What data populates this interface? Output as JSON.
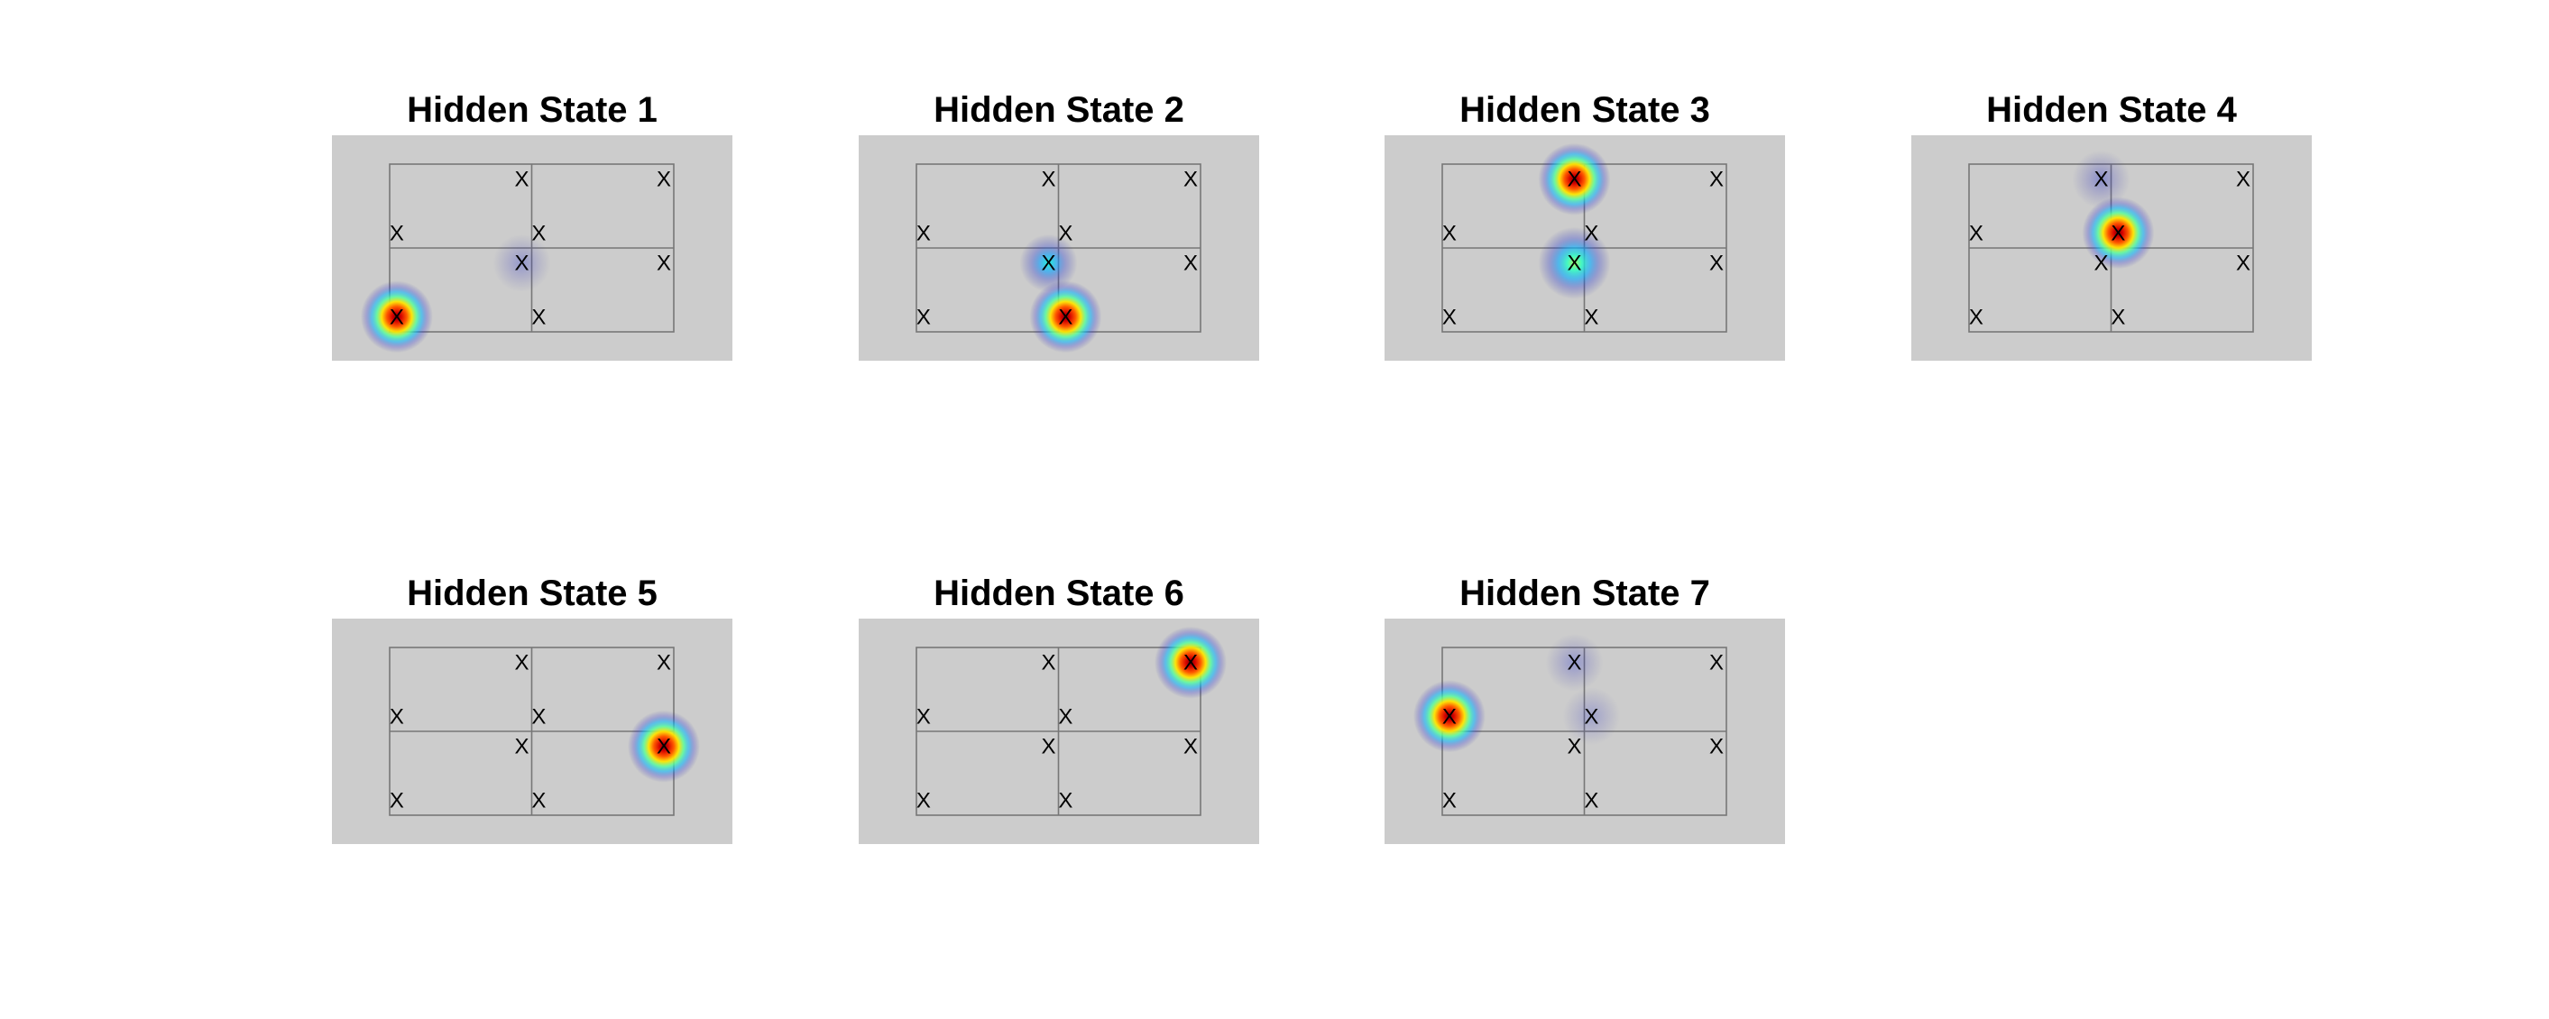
{
  "colors": {
    "axes_background": "#cccccc",
    "grid_line": "#777777",
    "marker": "#000000",
    "colormap": "jet"
  },
  "chart_data": [
    {
      "type": "heatmap",
      "title": "Hidden State 1",
      "xlim": [
        0,
        2
      ],
      "ylim": [
        0,
        2
      ],
      "axis_visible": false,
      "markers": {
        "label": "X",
        "points": [
          [
            0.93,
            1.82
          ],
          [
            1.93,
            1.82
          ],
          [
            0.05,
            1.18
          ],
          [
            1.05,
            1.18
          ],
          [
            0.93,
            0.82
          ],
          [
            1.93,
            0.82
          ],
          [
            0.05,
            0.18
          ],
          [
            1.05,
            0.18
          ]
        ]
      },
      "blobs": [
        {
          "x": 0.05,
          "y": 0.18,
          "intensity": 1.0
        },
        {
          "x": 0.93,
          "y": 0.82,
          "intensity": 0.12
        }
      ]
    },
    {
      "type": "heatmap",
      "title": "Hidden State 2",
      "xlim": [
        0,
        2
      ],
      "ylim": [
        0,
        2
      ],
      "axis_visible": false,
      "markers": {
        "label": "X",
        "points": [
          [
            0.93,
            1.82
          ],
          [
            1.93,
            1.82
          ],
          [
            0.05,
            1.18
          ],
          [
            1.05,
            1.18
          ],
          [
            0.93,
            0.82
          ],
          [
            1.93,
            0.82
          ],
          [
            0.05,
            0.18
          ],
          [
            1.05,
            0.18
          ]
        ]
      },
      "blobs": [
        {
          "x": 1.05,
          "y": 0.18,
          "intensity": 1.0
        },
        {
          "x": 0.93,
          "y": 0.82,
          "intensity": 0.4
        }
      ]
    },
    {
      "type": "heatmap",
      "title": "Hidden State 3",
      "xlim": [
        0,
        2
      ],
      "ylim": [
        0,
        2
      ],
      "axis_visible": false,
      "markers": {
        "label": "X",
        "points": [
          [
            0.93,
            1.82
          ],
          [
            1.93,
            1.82
          ],
          [
            0.05,
            1.18
          ],
          [
            1.05,
            1.18
          ],
          [
            0.93,
            0.82
          ],
          [
            1.93,
            0.82
          ],
          [
            0.05,
            0.18
          ],
          [
            1.05,
            0.18
          ]
        ]
      },
      "blobs": [
        {
          "x": 0.93,
          "y": 1.82,
          "intensity": 1.0
        },
        {
          "x": 0.93,
          "y": 0.82,
          "intensity": 0.55
        }
      ]
    },
    {
      "type": "heatmap",
      "title": "Hidden State 4",
      "xlim": [
        0,
        2
      ],
      "ylim": [
        0,
        2
      ],
      "axis_visible": false,
      "markers": {
        "label": "X",
        "points": [
          [
            0.93,
            1.82
          ],
          [
            1.93,
            1.82
          ],
          [
            0.05,
            1.18
          ],
          [
            1.05,
            1.18
          ],
          [
            0.93,
            0.82
          ],
          [
            1.93,
            0.82
          ],
          [
            0.05,
            0.18
          ],
          [
            1.05,
            0.18
          ]
        ]
      },
      "blobs": [
        {
          "x": 1.05,
          "y": 1.18,
          "intensity": 1.0
        },
        {
          "x": 0.93,
          "y": 1.82,
          "intensity": 0.18
        }
      ]
    },
    {
      "type": "heatmap",
      "title": "Hidden State 5",
      "xlim": [
        0,
        2
      ],
      "ylim": [
        0,
        2
      ],
      "axis_visible": false,
      "markers": {
        "label": "X",
        "points": [
          [
            0.93,
            1.82
          ],
          [
            1.93,
            1.82
          ],
          [
            0.05,
            1.18
          ],
          [
            1.05,
            1.18
          ],
          [
            0.93,
            0.82
          ],
          [
            1.93,
            0.82
          ],
          [
            0.05,
            0.18
          ],
          [
            1.05,
            0.18
          ]
        ]
      },
      "blobs": [
        {
          "x": 1.93,
          "y": 0.82,
          "intensity": 1.0
        }
      ]
    },
    {
      "type": "heatmap",
      "title": "Hidden State 6",
      "xlim": [
        0,
        2
      ],
      "ylim": [
        0,
        2
      ],
      "axis_visible": false,
      "markers": {
        "label": "X",
        "points": [
          [
            0.93,
            1.82
          ],
          [
            1.93,
            1.82
          ],
          [
            0.05,
            1.18
          ],
          [
            1.05,
            1.18
          ],
          [
            0.93,
            0.82
          ],
          [
            1.93,
            0.82
          ],
          [
            0.05,
            0.18
          ],
          [
            1.05,
            0.18
          ]
        ]
      },
      "blobs": [
        {
          "x": 1.93,
          "y": 1.82,
          "intensity": 1.0
        }
      ]
    },
    {
      "type": "heatmap",
      "title": "Hidden State 7",
      "xlim": [
        0,
        2
      ],
      "ylim": [
        0,
        2
      ],
      "axis_visible": false,
      "markers": {
        "label": "X",
        "points": [
          [
            0.93,
            1.82
          ],
          [
            1.93,
            1.82
          ],
          [
            0.05,
            1.18
          ],
          [
            1.05,
            1.18
          ],
          [
            0.93,
            0.82
          ],
          [
            1.93,
            0.82
          ],
          [
            0.05,
            0.18
          ],
          [
            1.05,
            0.18
          ]
        ]
      },
      "blobs": [
        {
          "x": 0.05,
          "y": 1.18,
          "intensity": 1.0
        },
        {
          "x": 0.93,
          "y": 1.82,
          "intensity": 0.12
        },
        {
          "x": 1.05,
          "y": 1.18,
          "intensity": 0.06
        }
      ]
    }
  ]
}
